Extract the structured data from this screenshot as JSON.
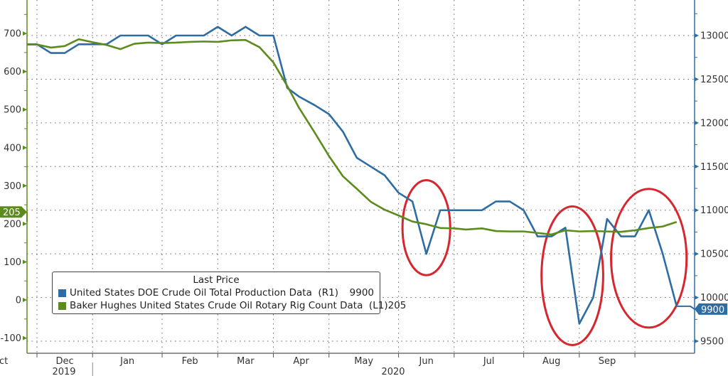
{
  "chart_data": {
    "type": "line",
    "title": "",
    "legend": {
      "header": "Last Price",
      "placement": "bottom-left"
    },
    "x_axis": {
      "type": "date",
      "range": [
        "2019-11-24",
        "2020-10-20"
      ],
      "month_labels": [
        "Dec",
        "Jan",
        "Feb",
        "Mar",
        "Apr",
        "May",
        "Jun",
        "Jul",
        "Aug",
        "Sep",
        "Oct"
      ],
      "year_labels": [
        "2019",
        "2020"
      ],
      "grid": true
    },
    "left_axis": {
      "range": [
        -140,
        788
      ],
      "ticks": [
        -100,
        0,
        100,
        200,
        300,
        400,
        500,
        600,
        700
      ],
      "color": "#5b8c1c"
    },
    "right_axis": {
      "range": [
        9362,
        13407
      ],
      "ticks": [
        9500,
        10000,
        10500,
        11000,
        11500,
        12000,
        12500,
        13000
      ],
      "color": "#2e6da4",
      "grid": true
    },
    "dates": [
      "2019-11-22",
      "2019-11-29",
      "2019-12-06",
      "2019-12-13",
      "2019-12-20",
      "2019-12-27",
      "2020-01-03",
      "2020-01-10",
      "2020-01-17",
      "2020-01-24",
      "2020-01-31",
      "2020-02-07",
      "2020-02-14",
      "2020-02-21",
      "2020-02-28",
      "2020-03-06",
      "2020-03-13",
      "2020-03-20",
      "2020-03-27",
      "2020-04-03",
      "2020-04-09",
      "2020-04-17",
      "2020-04-24",
      "2020-05-01",
      "2020-05-08",
      "2020-05-15",
      "2020-05-22",
      "2020-05-29",
      "2020-06-05",
      "2020-06-12",
      "2020-06-19",
      "2020-06-26",
      "2020-07-02",
      "2020-07-10",
      "2020-07-17",
      "2020-07-24",
      "2020-07-31",
      "2020-08-07",
      "2020-08-14",
      "2020-08-21",
      "2020-08-28",
      "2020-09-04",
      "2020-09-11",
      "2020-09-18",
      "2020-09-25",
      "2020-10-02",
      "2020-10-09",
      "2020-10-16"
    ],
    "series": [
      {
        "name": "United States DOE Crude Oil Total Production Data",
        "axis": "R1",
        "last_value": "9900",
        "color": "#2e6da4",
        "values": [
          12900,
          12900,
          12800,
          12800,
          12900,
          12900,
          12900,
          13000,
          13000,
          13000,
          12900,
          13000,
          13000,
          13000,
          13100,
          13000,
          13100,
          13000,
          13000,
          12400,
          12300,
          12200,
          12100,
          11900,
          11600,
          11500,
          11400,
          11200,
          11100,
          10500,
          11000,
          11000,
          11000,
          11000,
          11100,
          11100,
          11000,
          10700,
          10700,
          10800,
          9700,
          10000,
          10900,
          10700,
          10700,
          11000,
          10500,
          9900
        ]
      },
      {
        "name": "Baker Hughes United States Crude Oil Rotary Rig Count Data",
        "axis": "L1",
        "last_value": "205",
        "color": "#5b8c1c",
        "values": [
          671,
          671,
          663,
          667,
          685,
          677,
          670,
          659,
          673,
          676,
          675,
          676,
          678,
          679,
          678,
          682,
          683,
          664,
          624,
          562,
          504,
          438,
          378,
          325,
          292,
          258,
          237,
          222,
          206,
          199,
          189,
          188,
          185,
          188,
          181,
          180,
          180,
          176,
          172,
          183,
          180,
          181,
          180,
          179,
          183,
          189,
          193,
          205
        ]
      }
    ],
    "highlights": [
      {
        "from": "2020-06-05",
        "to": "2020-06-19",
        "color": "#d7262e"
      },
      {
        "from": "2020-08-14",
        "to": "2020-09-04",
        "color": "#d7262e"
      },
      {
        "from": "2020-09-18",
        "to": "2020-10-16",
        "color": "#d7262e"
      }
    ]
  }
}
